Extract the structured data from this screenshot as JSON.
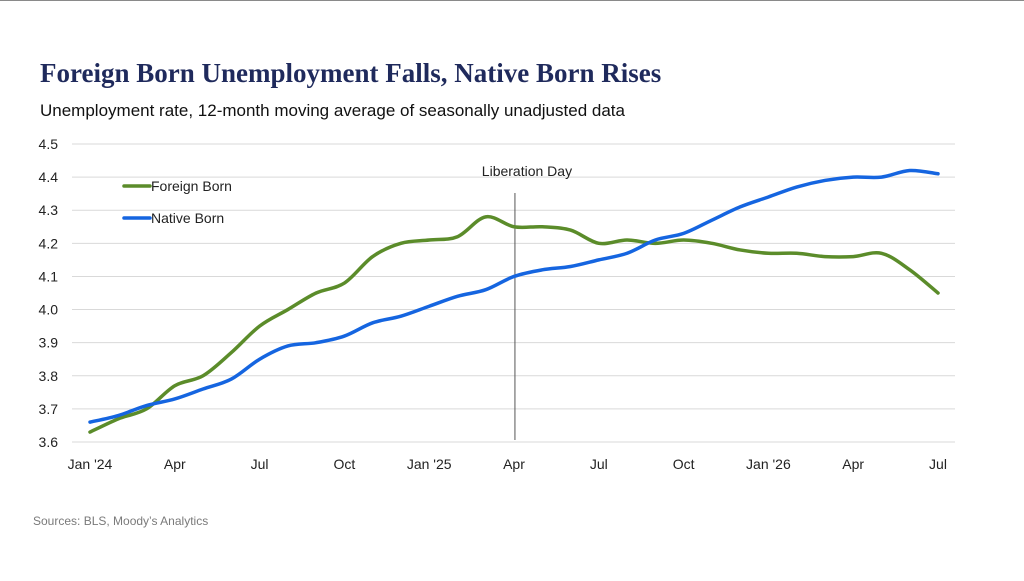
{
  "colors": {
    "title": "#1f2a5c",
    "grid": "#d9d9d9",
    "foreign_born": "#5b8c2a",
    "native_born": "#1565e0",
    "annotation_line": "#555555"
  },
  "chart_data": {
    "type": "line",
    "title": "Foreign Born Unemployment Falls, Native Born Rises",
    "subtitle": "Unemployment rate, 12-month moving average of seasonally unadjusted data",
    "source": "Sources: BLS, Moody’s Analytics",
    "ylim": [
      3.6,
      4.5
    ],
    "yticks": [
      3.6,
      3.7,
      3.8,
      3.9,
      4.0,
      4.1,
      4.2,
      4.3,
      4.4,
      4.5
    ],
    "ytick_labels": [
      "3.6",
      "3.7",
      "3.8",
      "3.9",
      "4.0",
      "4.1",
      "4.2",
      "4.3",
      "4.4",
      "4.5"
    ],
    "grid": true,
    "legend_position": "top-left",
    "x": [
      "2024-01",
      "2024-02",
      "2024-03",
      "2024-04",
      "2024-05",
      "2024-06",
      "2024-07",
      "2024-08",
      "2024-09",
      "2024-10",
      "2024-11",
      "2024-12",
      "2025-01",
      "2025-02",
      "2025-03",
      "2025-04",
      "2025-05",
      "2025-06",
      "2025-07",
      "2025-08",
      "2025-09",
      "2025-10",
      "2025-11",
      "2025-12",
      "2026-01",
      "2026-02",
      "2026-03",
      "2026-04",
      "2026-05",
      "2026-06",
      "2026-07"
    ],
    "xtick_labels": [
      {
        "month": "2024-01",
        "label": "Jan '24"
      },
      {
        "month": "2024-04",
        "label": "Apr"
      },
      {
        "month": "2024-07",
        "label": "Jul"
      },
      {
        "month": "2024-10",
        "label": "Oct"
      },
      {
        "month": "2025-01",
        "label": "Jan '25"
      },
      {
        "month": "2025-04",
        "label": "Apr"
      },
      {
        "month": "2025-07",
        "label": "Jul"
      },
      {
        "month": "2025-10",
        "label": "Oct"
      },
      {
        "month": "2026-01",
        "label": "Jan '26"
      },
      {
        "month": "2026-04",
        "label": "Apr"
      },
      {
        "month": "2026-07",
        "label": "Jul"
      }
    ],
    "series": [
      {
        "name": "Foreign Born",
        "color": "#5b8c2a",
        "values": [
          3.63,
          3.67,
          3.7,
          3.77,
          3.8,
          3.87,
          3.95,
          4.0,
          4.05,
          4.08,
          4.16,
          4.2,
          4.21,
          4.22,
          4.28,
          4.25,
          4.25,
          4.24,
          4.2,
          4.21,
          4.2,
          4.21,
          4.2,
          4.18,
          4.17,
          4.17,
          4.16,
          4.16,
          4.17,
          4.12,
          4.05
        ]
      },
      {
        "name": "Native Born",
        "color": "#1565e0",
        "values": [
          3.66,
          3.68,
          3.71,
          3.73,
          3.76,
          3.79,
          3.85,
          3.89,
          3.9,
          3.92,
          3.96,
          3.98,
          4.01,
          4.04,
          4.06,
          4.1,
          4.12,
          4.13,
          4.15,
          4.17,
          4.21,
          4.23,
          4.27,
          4.31,
          4.34,
          4.37,
          4.39,
          4.4,
          4.4,
          4.42,
          4.41
        ]
      }
    ],
    "annotations": [
      {
        "label": "Liberation Day",
        "x": "2025-04-02"
      }
    ]
  }
}
